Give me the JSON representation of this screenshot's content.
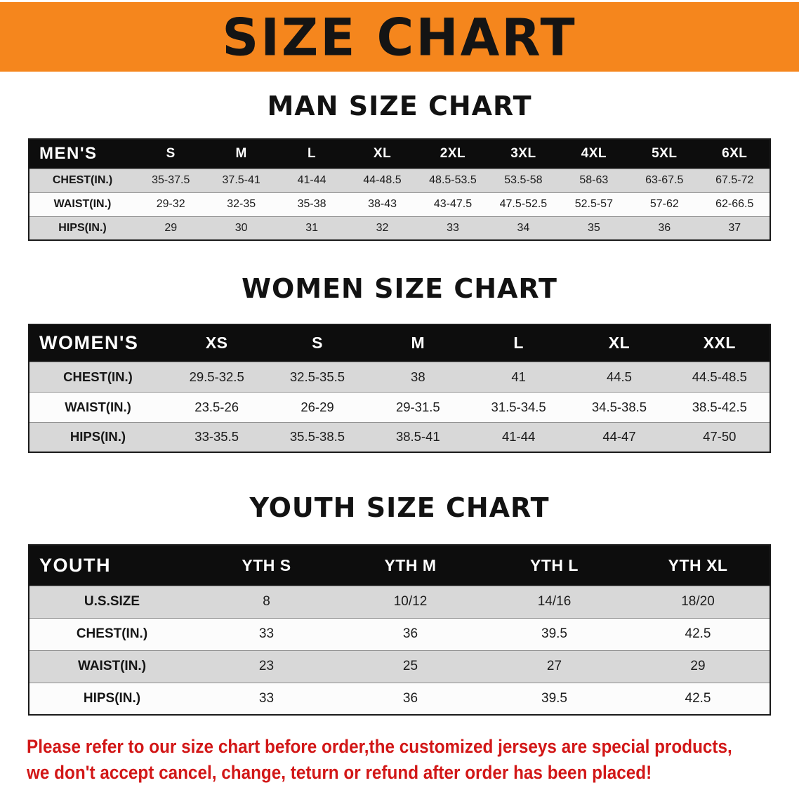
{
  "banner": {
    "title": "SIZE CHART",
    "bg_color": "#f5861d"
  },
  "sections": [
    {
      "id": "men",
      "heading": "MAN SIZE CHART",
      "header": [
        "MEN'S",
        "S",
        "M",
        "L",
        "XL",
        "2XL",
        "3XL",
        "4XL",
        "5XL",
        "6XL"
      ],
      "rows": [
        {
          "label": "CHEST(IN.)",
          "values": [
            "35-37.5",
            "37.5-41",
            "41-44",
            "44-48.5",
            "48.5-53.5",
            "53.5-58",
            "58-63",
            "63-67.5",
            "67.5-72"
          ]
        },
        {
          "label": "WAIST(IN.)",
          "values": [
            "29-32",
            "32-35",
            "35-38",
            "38-43",
            "43-47.5",
            "47.5-52.5",
            "52.5-57",
            "57-62",
            "62-66.5"
          ]
        },
        {
          "label": "HIPS(IN.)",
          "values": [
            "29",
            "30",
            "31",
            "32",
            "33",
            "34",
            "35",
            "36",
            "37"
          ]
        }
      ]
    },
    {
      "id": "women",
      "heading": "WOMEN SIZE CHART",
      "header": [
        "WOMEN'S",
        "XS",
        "S",
        "M",
        "L",
        "XL",
        "XXL"
      ],
      "rows": [
        {
          "label": "CHEST(IN.)",
          "values": [
            "29.5-32.5",
            "32.5-35.5",
            "38",
            "41",
            "44.5",
            "44.5-48.5"
          ]
        },
        {
          "label": "WAIST(IN.)",
          "values": [
            "23.5-26",
            "26-29",
            "29-31.5",
            "31.5-34.5",
            "34.5-38.5",
            "38.5-42.5"
          ]
        },
        {
          "label": "HIPS(IN.)",
          "values": [
            "33-35.5",
            "35.5-38.5",
            "38.5-41",
            "41-44",
            "44-47",
            "47-50"
          ]
        }
      ]
    },
    {
      "id": "youth",
      "heading": "YOUTH SIZE CHART",
      "header": [
        "YOUTH",
        "YTH S",
        "YTH M",
        "YTH L",
        "YTH XL"
      ],
      "rows": [
        {
          "label": "U.S.SIZE",
          "values": [
            "8",
            "10/12",
            "14/16",
            "18/20"
          ]
        },
        {
          "label": "CHEST(IN.)",
          "values": [
            "33",
            "36",
            "39.5",
            "42.5"
          ]
        },
        {
          "label": "WAIST(IN.)",
          "values": [
            "23",
            "25",
            "27",
            "29"
          ]
        },
        {
          "label": "HIPS(IN.)",
          "values": [
            "33",
            "36",
            "39.5",
            "42.5"
          ]
        }
      ]
    }
  ],
  "footer": {
    "color": "#d21717",
    "lines": [
      "Please refer to our size chart before order,the customized jerseys are special products,",
      "we don't accept cancel, change, teturn or refund after order has been placed!"
    ]
  }
}
